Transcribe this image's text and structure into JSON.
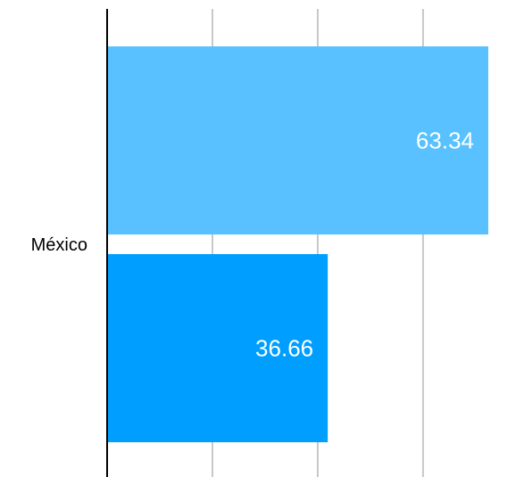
{
  "chart_data": {
    "type": "bar",
    "orientation": "horizontal",
    "categories": [
      "México"
    ],
    "series": [
      {
        "values": [
          63.34
        ],
        "color": "#59c1ff"
      },
      {
        "values": [
          36.66
        ],
        "color": "#009fff"
      }
    ],
    "value_labels": [
      "63.34",
      "36.66"
    ],
    "xlim": [
      0,
      63.34
    ],
    "grid": true,
    "gridline_values": [
      17.5,
      35,
      52.5
    ],
    "title": "",
    "xlabel": "",
    "ylabel": "",
    "legend": "none"
  },
  "colors": {
    "axis": "#000000",
    "grid": "#c8c8c8",
    "value_label_text": "#ffffff",
    "category_label_text": "#000000"
  }
}
